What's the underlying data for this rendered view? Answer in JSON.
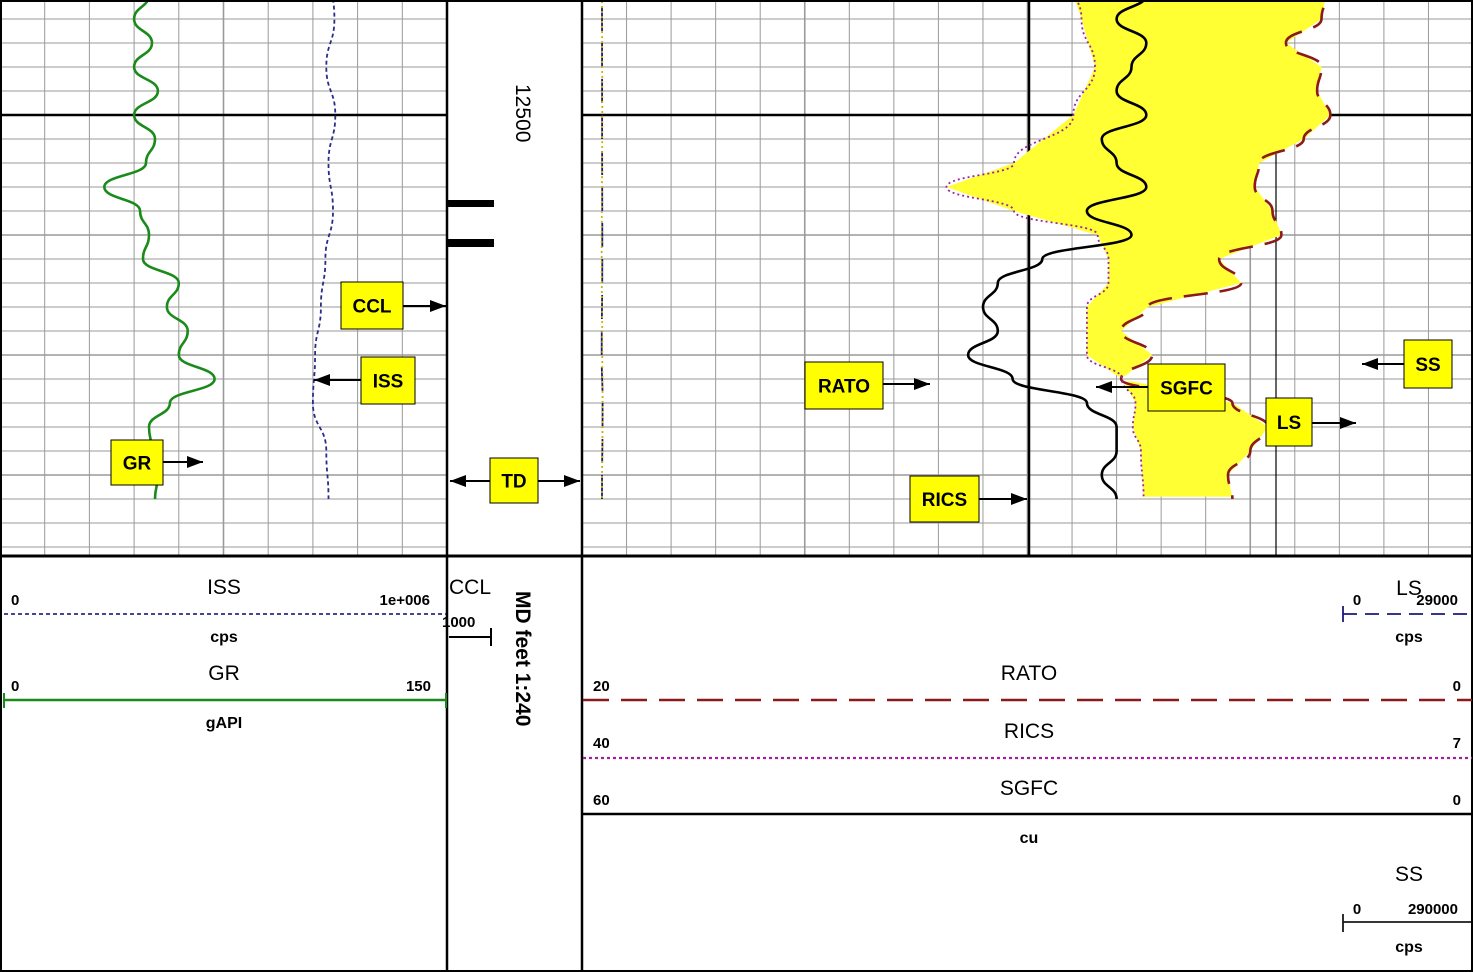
{
  "chart_data": {
    "type": "line",
    "title": "",
    "depth": {
      "reference_label": "12500",
      "index_label": "MD feet 1:240",
      "unit": "feet",
      "scale": "1:240"
    },
    "markers": [
      {
        "name": "TD"
      }
    ],
    "tracks": [
      {
        "name": "track-1",
        "curves": [
          {
            "name": "GR",
            "unit": "gAPI",
            "scale": [
              0,
              150
            ],
            "left": "0",
            "right": "150",
            "color": "#1a8a1a",
            "line_style": "solid",
            "y": [
              12494,
              12495,
              12496,
              12497,
              12498,
              12499,
              12500,
              12501,
              12502,
              12503,
              12504,
              12505,
              12506,
              12507,
              12508,
              12509,
              12510,
              12511,
              12512,
              12513,
              12514,
              12515,
              12516
            ],
            "values": [
              57,
              50,
              45,
              51,
              45,
              53,
              45,
              52,
              49,
              35,
              47,
              50,
              48,
              60,
              56,
              63,
              60,
              72,
              57,
              50,
              51,
              53,
              52
            ]
          },
          {
            "name": "ISS",
            "unit": "cps",
            "scale": [
              0,
              1000000
            ],
            "left": "0",
            "right": "1e+006",
            "color": "#2b2b8c",
            "line_style": "dashed",
            "y": [
              12494,
              12496,
              12498,
              12500,
              12502,
              12504,
              12506,
              12508,
              12510,
              12512,
              12514,
              12516
            ],
            "values": [
              738000,
              748000,
              730000,
              750000,
              735000,
              745000,
              728000,
              718000,
              705000,
              700000,
              730000,
              735000
            ]
          },
          {
            "name": "CCL",
            "unit": "",
            "scale": [
              null,
              1000
            ],
            "left": "",
            "right": "1000",
            "color": "#000000",
            "line_style": "solid",
            "y": [],
            "values": []
          }
        ]
      },
      {
        "name": "track-2",
        "curves": [
          {
            "name": "RATO",
            "unit": "",
            "scale": [
              20,
              0
            ],
            "left": "20",
            "right": "0",
            "color": "#8b1a1a",
            "line_style": "long-dash",
            "y": [
              12494,
              12495,
              12496,
              12497,
              12498,
              12499,
              12500,
              12501,
              12502,
              12503,
              12504,
              12505,
              12506,
              12507,
              12508,
              12509,
              12510,
              12511,
              12512,
              12513,
              12514,
              12515,
              12516
            ],
            "values": [
              5.3,
              3.3,
              3.4,
              4.2,
              3.4,
              3.5,
              3.2,
              3.8,
              4.8,
              4.9,
              4.5,
              4.3,
              5.7,
              5.2,
              7.3,
              7.9,
              7.2,
              7.9,
              5.4,
              4.6,
              5.0,
              5.5,
              5.4
            ]
          },
          {
            "name": "RICS",
            "unit": "",
            "scale": [
              40,
              7
            ],
            "left": "40",
            "right": "7",
            "color": "#a020a0",
            "line_style": "dotted",
            "y": [
              12494,
              12496,
              12498,
              12500,
              12502,
              12503,
              12504,
              12505,
              12506,
              12507,
              12508,
              12509,
              12510,
              12511,
              12512,
              12513,
              12514,
              12516
            ],
            "values": [
              22.1,
              21.5,
              21.0,
              21.8,
              24.0,
              26.5,
              24.0,
              20.9,
              20.5,
              20.5,
              21.3,
              21.3,
              21.3,
              20.0,
              19.5,
              19.6,
              19.3,
              19.2
            ]
          },
          {
            "name": "SGFC",
            "unit": "cu",
            "scale": [
              60,
              0
            ],
            "left": "60",
            "right": "0",
            "color": "#000000",
            "line_style": "solid",
            "y": [
              12494,
              12495,
              12496,
              12497,
              12498,
              12499,
              12500,
              12501,
              12502,
              12503,
              12504,
              12505,
              12506,
              12507,
              12508,
              12509,
              12510,
              12511,
              12512,
              12513,
              12514,
              12515,
              12516
            ],
            "values": [
              25,
              22,
              24,
              22,
              23,
              24,
              22,
              25,
              24,
              22,
              26,
              23,
              29,
              32,
              33,
              32,
              34,
              31,
              26,
              24,
              24,
              25,
              24
            ]
          },
          {
            "name": "LS",
            "unit": "cps",
            "scale": [
              0,
              29000
            ],
            "left": "0",
            "right": "29000",
            "color": "#1a1a7a",
            "line_style": "long-dash",
            "y": [
              12494,
              12500,
              12506,
              12510,
              12512,
              12516
            ],
            "values": [
              650,
              655,
              660,
              640,
              670,
              650
            ]
          },
          {
            "name": "SS",
            "unit": "cps",
            "scale": [
              0,
              290000
            ],
            "left": "0",
            "right": "290000",
            "color": "#c8b400",
            "line_style": "dotted",
            "y": [
              12494,
              12500,
              12506,
              12510,
              12512,
              12516
            ],
            "values": [
              6500,
              6600,
              6400,
              6600,
              6700,
              6500
            ]
          }
        ]
      }
    ],
    "callouts": [
      "GR",
      "ISS",
      "CCL",
      "TD",
      "RATO",
      "RICS",
      "SGFC",
      "LS",
      "SS"
    ],
    "grid": true
  }
}
